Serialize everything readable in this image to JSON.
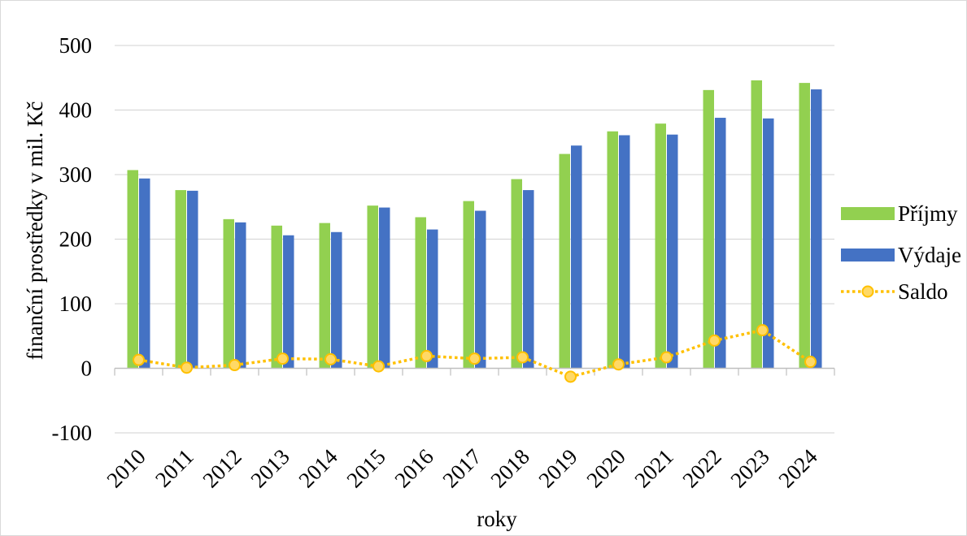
{
  "chart_data": {
    "type": "bar",
    "categories": [
      "2010",
      "2011",
      "2012",
      "2013",
      "2014",
      "2015",
      "2016",
      "2017",
      "2018",
      "2019",
      "2020",
      "2021",
      "2022",
      "2023",
      "2024"
    ],
    "series": [
      {
        "name": "Příjmy",
        "kind": "bar",
        "color": "#92d050",
        "values": [
          307,
          276,
          231,
          221,
          225,
          252,
          234,
          259,
          293,
          332,
          367,
          379,
          431,
          446,
          442
        ]
      },
      {
        "name": "Výdaje",
        "kind": "bar",
        "color": "#4472c4",
        "values": [
          294,
          275,
          226,
          206,
          211,
          249,
          215,
          244,
          276,
          345,
          361,
          362,
          388,
          387,
          432
        ]
      },
      {
        "name": "Saldo",
        "kind": "line",
        "color": "#ffc000",
        "marker_fill": "#ffd966",
        "line_style": "dotted",
        "values": [
          13,
          1,
          5,
          15,
          14,
          3,
          19,
          15,
          17,
          -13,
          6,
          17,
          43,
          59,
          10
        ]
      }
    ],
    "title": "",
    "xlabel": "roky",
    "ylabel": "finanční prostředky v mil. Kč",
    "ylim": [
      -100,
      500
    ],
    "yticks": [
      -100,
      0,
      100,
      200,
      300,
      400,
      500
    ],
    "grid": true,
    "legend_position": "right"
  }
}
